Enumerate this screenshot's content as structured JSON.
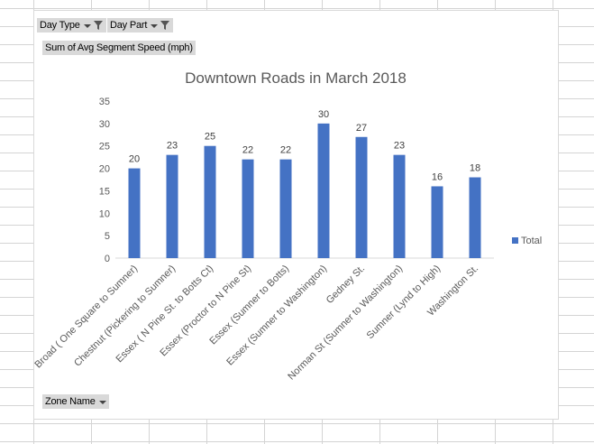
{
  "pivot": {
    "filters": [
      {
        "label": "Day Type",
        "icon": "filter-icon"
      },
      {
        "label": "Day Part",
        "icon": "filter-icon"
      }
    ],
    "value_field": "Sum of Avg Segment Speed (mph)",
    "axis_field": "Zone Name"
  },
  "chart_data": {
    "type": "bar",
    "title": "Downtown Roads in March 2018",
    "categories": [
      "Broad ( One Square to Sumner)",
      "Chestnut (Pickering to Sumner)",
      "Essex ( N Pine St. to Botts Ct)",
      "Essex (Proctor to N Pine St)",
      "Essex (Sumner to Botts)",
      "Essex (Sumner to Washington)",
      "Gedney St.",
      "Norman St (Sumner to Washington)",
      "Sumner (Lynd to High)",
      "Washington St."
    ],
    "series": [
      {
        "name": "Total",
        "values": [
          20,
          23,
          25,
          22,
          22,
          30,
          27,
          23,
          16,
          18
        ],
        "color": "#4472c4"
      }
    ],
    "ylim": [
      0,
      35
    ],
    "yticks": [
      0,
      5,
      10,
      15,
      20,
      25,
      30,
      35
    ],
    "grid": false,
    "legend": "right",
    "data_labels": true
  }
}
